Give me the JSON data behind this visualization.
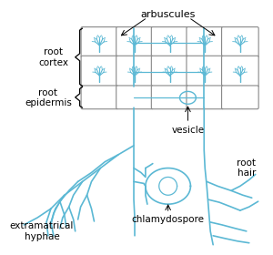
{
  "bg_color": "#ffffff",
  "cell_line_color": "#888888",
  "hyphae_color": "#5BB8D4",
  "text_color": "#000000",
  "labels": {
    "arbuscules": "arbuscules",
    "root_cortex": "root\ncortex",
    "root_epidermis": "root\nepidermis",
    "vesicle": "vesicle",
    "root_hair": "root\nhair",
    "extramatrical_hyphae": "extramatrical\nhyphae",
    "chlamydospore": "chlamydospore"
  },
  "figsize": [
    3.0,
    2.8
  ],
  "dpi": 100
}
